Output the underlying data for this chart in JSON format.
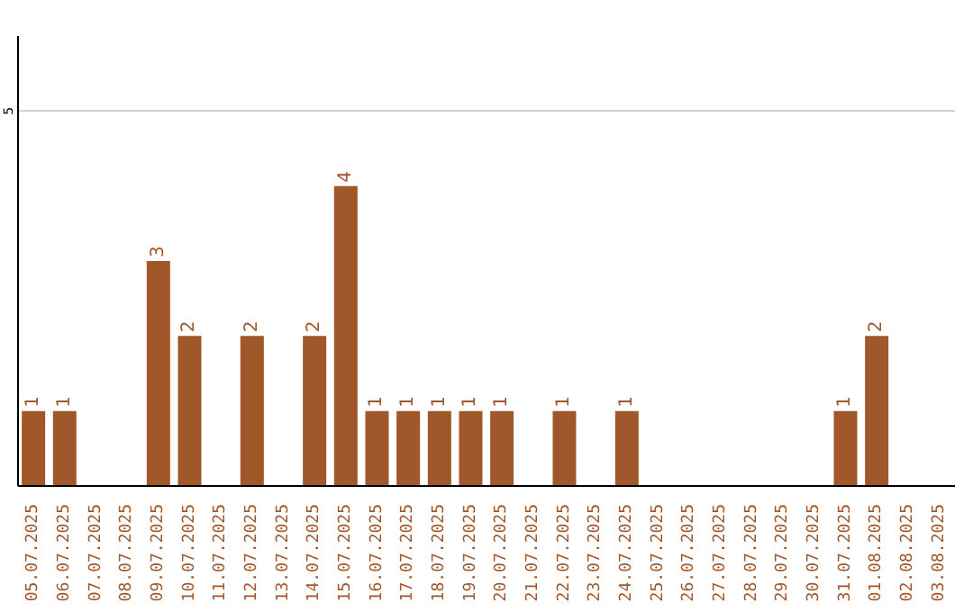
{
  "chart_data": {
    "type": "bar",
    "categories": [
      "05.07.2025",
      "06.07.2025",
      "07.07.2025",
      "08.07.2025",
      "09.07.2025",
      "10.07.2025",
      "11.07.2025",
      "12.07.2025",
      "13.07.2025",
      "14.07.2025",
      "15.07.2025",
      "16.07.2025",
      "17.07.2025",
      "18.07.2025",
      "19.07.2025",
      "20.07.2025",
      "21.07.2025",
      "22.07.2025",
      "23.07.2025",
      "24.07.2025",
      "25.07.2025",
      "26.07.2025",
      "27.07.2025",
      "28.07.2025",
      "29.07.2025",
      "30.07.2025",
      "31.07.2025",
      "01.08.2025",
      "02.08.2025",
      "03.08.2025"
    ],
    "values": [
      1,
      1,
      0,
      0,
      3,
      2,
      0,
      2,
      0,
      2,
      4,
      1,
      1,
      1,
      1,
      1,
      0,
      1,
      0,
      1,
      0,
      0,
      0,
      0,
      0,
      0,
      1,
      2,
      0,
      0
    ],
    "value_labels": [
      "1",
      "1",
      null,
      null,
      "3",
      "2",
      null,
      "2",
      null,
      "2",
      "4",
      "1",
      "1",
      "1",
      "1",
      "1",
      null,
      "1",
      null,
      "1",
      null,
      null,
      null,
      null,
      null,
      null,
      "1",
      "2",
      null,
      null
    ],
    "color": "#a0582a",
    "ylim": [
      0,
      6
    ],
    "yticks": [
      5
    ],
    "grid": "y"
  }
}
